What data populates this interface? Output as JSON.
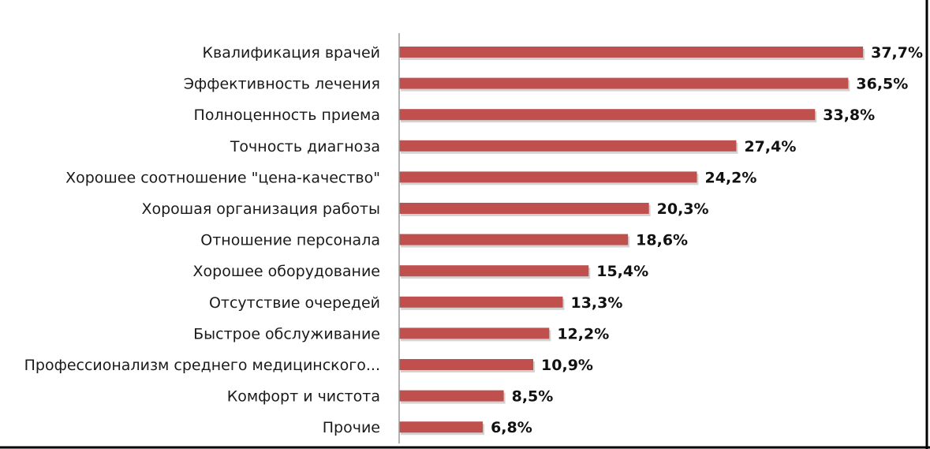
{
  "chart_data": {
    "type": "bar",
    "orientation": "horizontal",
    "categories": [
      "Квалификация врачей",
      "Эффективность лечения",
      "Полноценность приема",
      "Точность диагноза",
      "Хорошее соотношение \"цена-качество\"",
      "Хорошая организация работы",
      "Отношение персонала",
      "Хорошее оборудование",
      "Отсутствие очередей",
      "Быстрое обслуживание",
      "Профессионализм среднего медицинского...",
      "Комфорт и чистота",
      "Прочие"
    ],
    "values": [
      37.7,
      36.5,
      33.8,
      27.4,
      24.2,
      20.3,
      18.6,
      15.4,
      13.3,
      12.2,
      10.9,
      8.5,
      6.8
    ],
    "value_labels": [
      "37,7%",
      "36,5%",
      "33,8%",
      "27,4%",
      "24,2%",
      "20,3%",
      "18,6%",
      "15,4%",
      "13,3%",
      "12,2%",
      "10,9%",
      "8,5%",
      "6,8%"
    ],
    "xlim": [
      0,
      38
    ],
    "grid": false,
    "legend": "none",
    "colors": {
      "bar": "#c0504d"
    }
  }
}
